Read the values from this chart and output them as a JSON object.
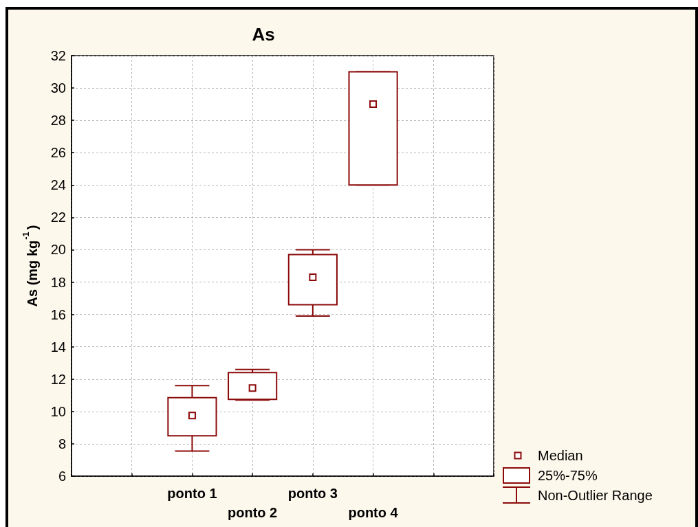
{
  "chart_data": {
    "type": "box",
    "title": "As",
    "ylabel": "As (mg kg$^{-1}$)",
    "categories": [
      null,
      null,
      "ponto 1",
      "ponto 2",
      "ponto 3",
      "ponto 4",
      null,
      null
    ],
    "boxes": [
      null,
      null,
      {
        "low": 7.55,
        "q1": 8.5,
        "median": 9.75,
        "q3": 10.85,
        "high": 11.6
      },
      {
        "low": 10.7,
        "q1": 10.75,
        "median": 11.45,
        "q3": 12.4,
        "high": 12.6
      },
      {
        "low": 15.9,
        "q1": 16.6,
        "median": 18.3,
        "q3": 19.7,
        "high": 20
      },
      {
        "low": 24,
        "q1": 24,
        "median": 29,
        "q3": 31,
        "high": 31
      },
      null,
      null
    ],
    "color": "#8b0a0a",
    "ylim": [
      6,
      32
    ],
    "yticks": [
      6,
      8,
      10,
      12,
      14,
      16,
      18,
      20,
      22,
      24,
      26,
      28,
      30,
      32
    ],
    "grid": true,
    "annotations": [
      "Median",
      "25%-75%",
      "Non-Outlier Range"
    ]
  }
}
